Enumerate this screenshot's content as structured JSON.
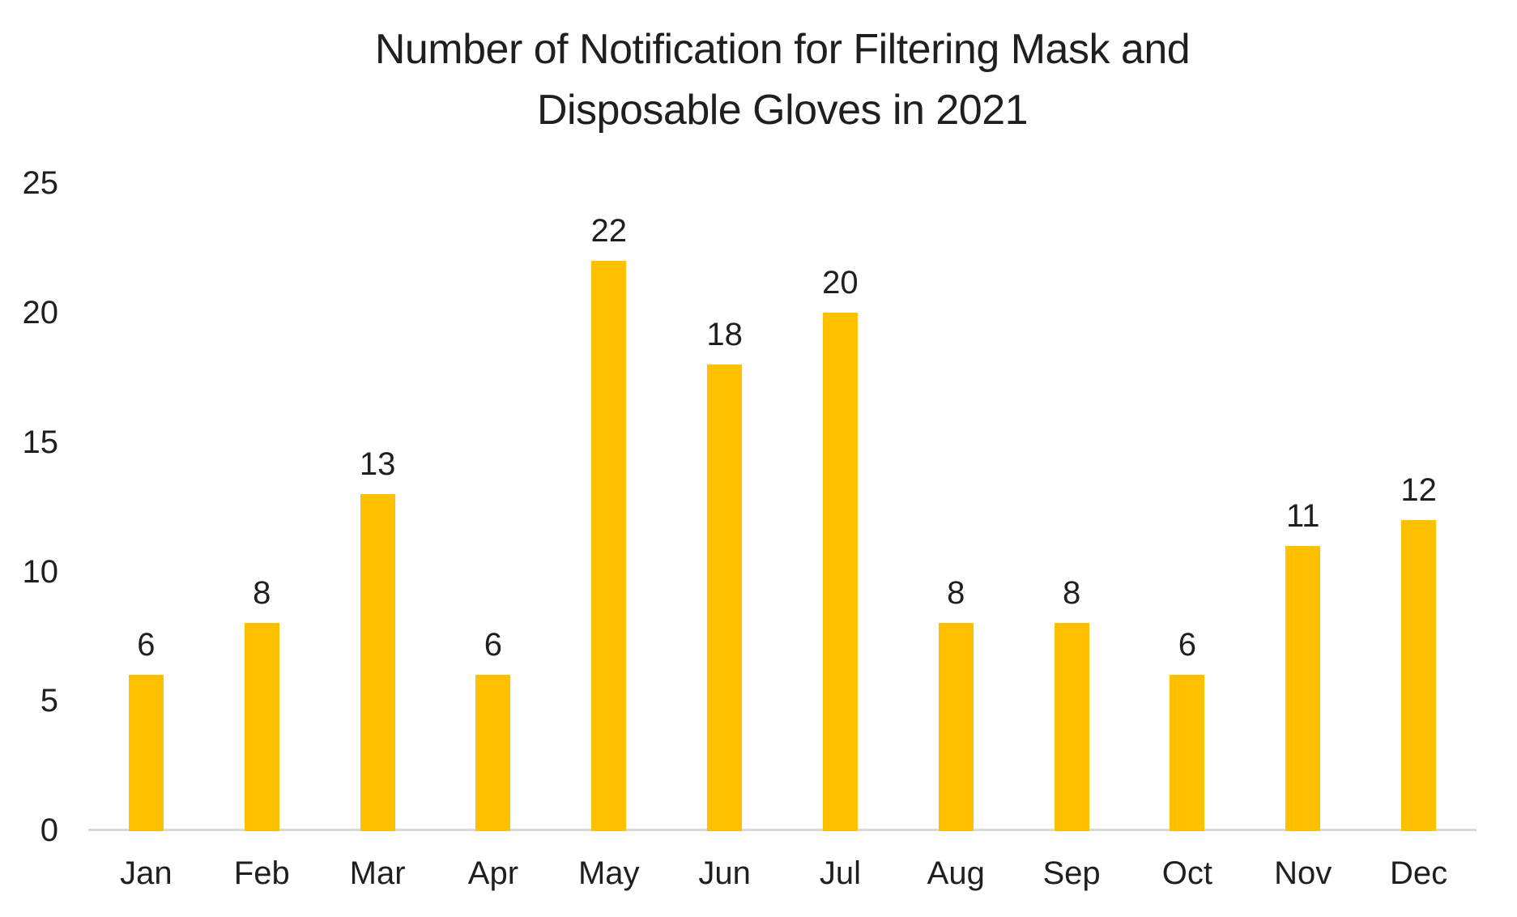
{
  "chart_data": {
    "type": "bar",
    "title": "Number of Notification for Filtering Mask and Disposable Gloves in 2021",
    "title_lines": [
      "Number of Notification for Filtering Mask and",
      "Disposable Gloves in 2021"
    ],
    "categories": [
      "Jan",
      "Feb",
      "Mar",
      "Apr",
      "May",
      "Jun",
      "Jul",
      "Aug",
      "Sep",
      "Oct",
      "Nov",
      "Dec"
    ],
    "values": [
      6,
      8,
      13,
      6,
      22,
      18,
      20,
      8,
      8,
      6,
      11,
      12
    ],
    "show_data_labels": true,
    "xlabel": "",
    "ylabel": "",
    "ylim": [
      0,
      25
    ],
    "yticks": [
      0,
      5,
      10,
      15,
      20,
      25
    ],
    "grid": false,
    "legend_position": "none",
    "colors": {
      "bar": "#FFC000",
      "axis_line": "#D9D9D9",
      "text": "#1F1F1F",
      "background": "#FFFFFF"
    }
  }
}
